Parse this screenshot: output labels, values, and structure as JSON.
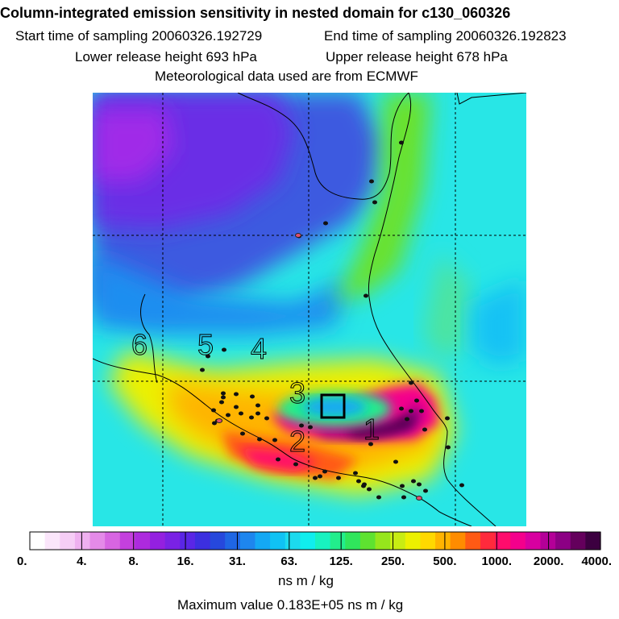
{
  "header": {
    "title": "Column-integrated emission sensitivity in nested domain for c130_060326",
    "start_time": "Start time of sampling 20060326.192729",
    "end_time": "End time of sampling 20060326.192823",
    "lower_release": "Lower release height  693 hPa",
    "upper_release": "Upper release height  678 hPa",
    "met_data": "Meteorological data used are from ECMWF"
  },
  "chart_data": {
    "type": "heatmap",
    "title": "Column-integrated emission sensitivity in nested domain for c130_060326",
    "colorbar": {
      "unit": "ns m / kg",
      "tick_labels": [
        "0.",
        "4.",
        "8.",
        "16.",
        "31.",
        "63.",
        "125.",
        "250.",
        "500.",
        "1000.",
        "2000.",
        "4000."
      ],
      "colors": [
        "#ffffff",
        "#fbe6fb",
        "#f6cdf6",
        "#efb0f0",
        "#e48ae8",
        "#d765e2",
        "#c440dd",
        "#ad2ade",
        "#9420e0",
        "#7a22e4",
        "#5a26e6",
        "#3c2fe0",
        "#2648dc",
        "#1f66e4",
        "#1e86ee",
        "#14a8f4",
        "#10c2f4",
        "#1cdaee",
        "#10eeee",
        "#18f2c0",
        "#22ee8c",
        "#30e65c",
        "#5ee230",
        "#96e61c",
        "#c8ec12",
        "#ecf000",
        "#ffd800",
        "#ffb400",
        "#ff8c00",
        "#ff5a14",
        "#ff2a3c",
        "#ff0c6c",
        "#f4008c",
        "#d800a0",
        "#b40098",
        "#8c0084",
        "#64005c",
        "#3c0040"
      ]
    },
    "annotations": [
      "1",
      "2",
      "3",
      "4",
      "5",
      "6"
    ],
    "maximum_value": "Maximum value  0.183E+05 ns m / kg"
  }
}
